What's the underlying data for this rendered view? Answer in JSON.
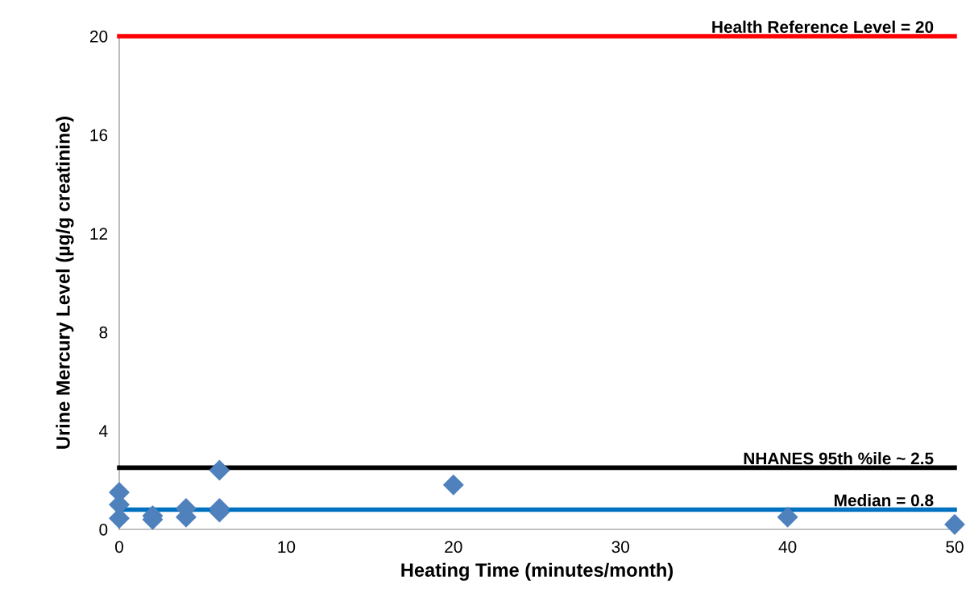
{
  "chart_data": {
    "type": "scatter",
    "xlabel": "Heating Time (minutes/month)",
    "ylabel": "Urine Mercury Level (µg/g creatinine)",
    "x": [
      0,
      0,
      0,
      2,
      2,
      4,
      4,
      6,
      6,
      6,
      20,
      40,
      50
    ],
    "series": [
      {
        "color": "#4f81bd",
        "values": [
          1.5,
          1.0,
          0.45,
          0.55,
          0.4,
          0.85,
          0.5,
          2.4,
          0.85,
          0.7,
          1.8,
          0.5,
          0.2
        ]
      }
    ],
    "marker": "diamond",
    "xlim": [
      0,
      50
    ],
    "xticks": [
      0,
      10,
      20,
      30,
      40,
      50
    ],
    "ylim": [
      0,
      20
    ],
    "yticks": [
      0,
      4,
      8,
      12,
      16,
      20
    ],
    "grid": false,
    "legend": false,
    "ref_lines": [
      {
        "axis": "y",
        "value": 20,
        "label": "Health Reference Level = 20",
        "color": "#ff0000"
      },
      {
        "axis": "y",
        "value": 2.5,
        "label": "NHANES 95th %ile ~ 2.5",
        "color": "#000000"
      },
      {
        "axis": "y",
        "value": 0.8,
        "label": "Median = 0.8",
        "color": "#0070c0"
      }
    ]
  }
}
